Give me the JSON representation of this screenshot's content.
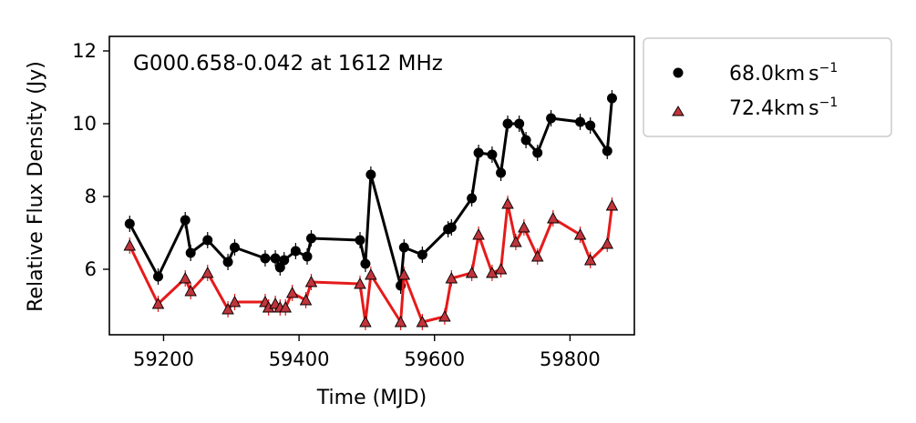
{
  "chart_data": {
    "type": "line",
    "annotation": "G000.658-0.042 at 1612 MHz",
    "xlabel": "Time (MJD)",
    "ylabel": "Relative Flux Density (Jy)",
    "xlim": [
      59120,
      59895
    ],
    "ylim": [
      4.2,
      12.4
    ],
    "xticks": [
      59200,
      59400,
      59600,
      59800
    ],
    "yticks": [
      6,
      8,
      10,
      12
    ],
    "grid": false,
    "legend_position": "outside-right-top",
    "series": [
      {
        "name": "68.0km s⁻¹",
        "legend_prefix": "68.0km",
        "legend_unit": "s",
        "legend_sup": "−1",
        "marker": "circle",
        "color": "#000000",
        "x": [
          59150,
          59192,
          59232,
          59240,
          59265,
          59295,
          59305,
          59350,
          59365,
          59372,
          59378,
          59395,
          59412,
          59418,
          59490,
          59498,
          59506,
          59550,
          59555,
          59582,
          59620,
          59625,
          59655,
          59665,
          59685,
          59698,
          59708,
          59725,
          59735,
          59752,
          59772,
          59815,
          59830,
          59855,
          59862
        ],
        "y": [
          7.25,
          5.8,
          7.35,
          6.45,
          6.8,
          6.2,
          6.6,
          6.3,
          6.3,
          6.05,
          6.25,
          6.5,
          6.35,
          6.85,
          6.8,
          6.15,
          8.6,
          5.55,
          6.6,
          6.4,
          7.1,
          7.15,
          7.95,
          9.2,
          9.15,
          8.65,
          10.0,
          10.0,
          9.55,
          9.2,
          10.15,
          10.05,
          9.95,
          9.25,
          10.7
        ]
      },
      {
        "name": "72.4km s⁻¹",
        "legend_prefix": "72.4km",
        "legend_unit": "s",
        "legend_sup": "−1",
        "marker": "triangle",
        "color": "#e61a1a",
        "marker_face": "#c0343b",
        "x": [
          59150,
          59192,
          59232,
          59240,
          59265,
          59295,
          59305,
          59350,
          59355,
          59365,
          59372,
          59380,
          59390,
          59410,
          59418,
          59490,
          59498,
          59506,
          59550,
          59555,
          59582,
          59615,
          59625,
          59655,
          59665,
          59685,
          59698,
          59708,
          59720,
          59732,
          59752,
          59775,
          59815,
          59830,
          59855,
          59862
        ],
        "y": [
          6.65,
          5.05,
          5.75,
          5.4,
          5.9,
          4.9,
          5.1,
          5.1,
          4.95,
          5.05,
          4.95,
          4.95,
          5.35,
          5.15,
          5.65,
          5.6,
          4.55,
          5.85,
          4.55,
          5.85,
          4.55,
          4.7,
          5.75,
          5.9,
          6.95,
          5.9,
          6.0,
          7.8,
          6.75,
          7.15,
          6.35,
          7.4,
          6.95,
          6.25,
          6.7,
          7.75
        ]
      }
    ]
  }
}
